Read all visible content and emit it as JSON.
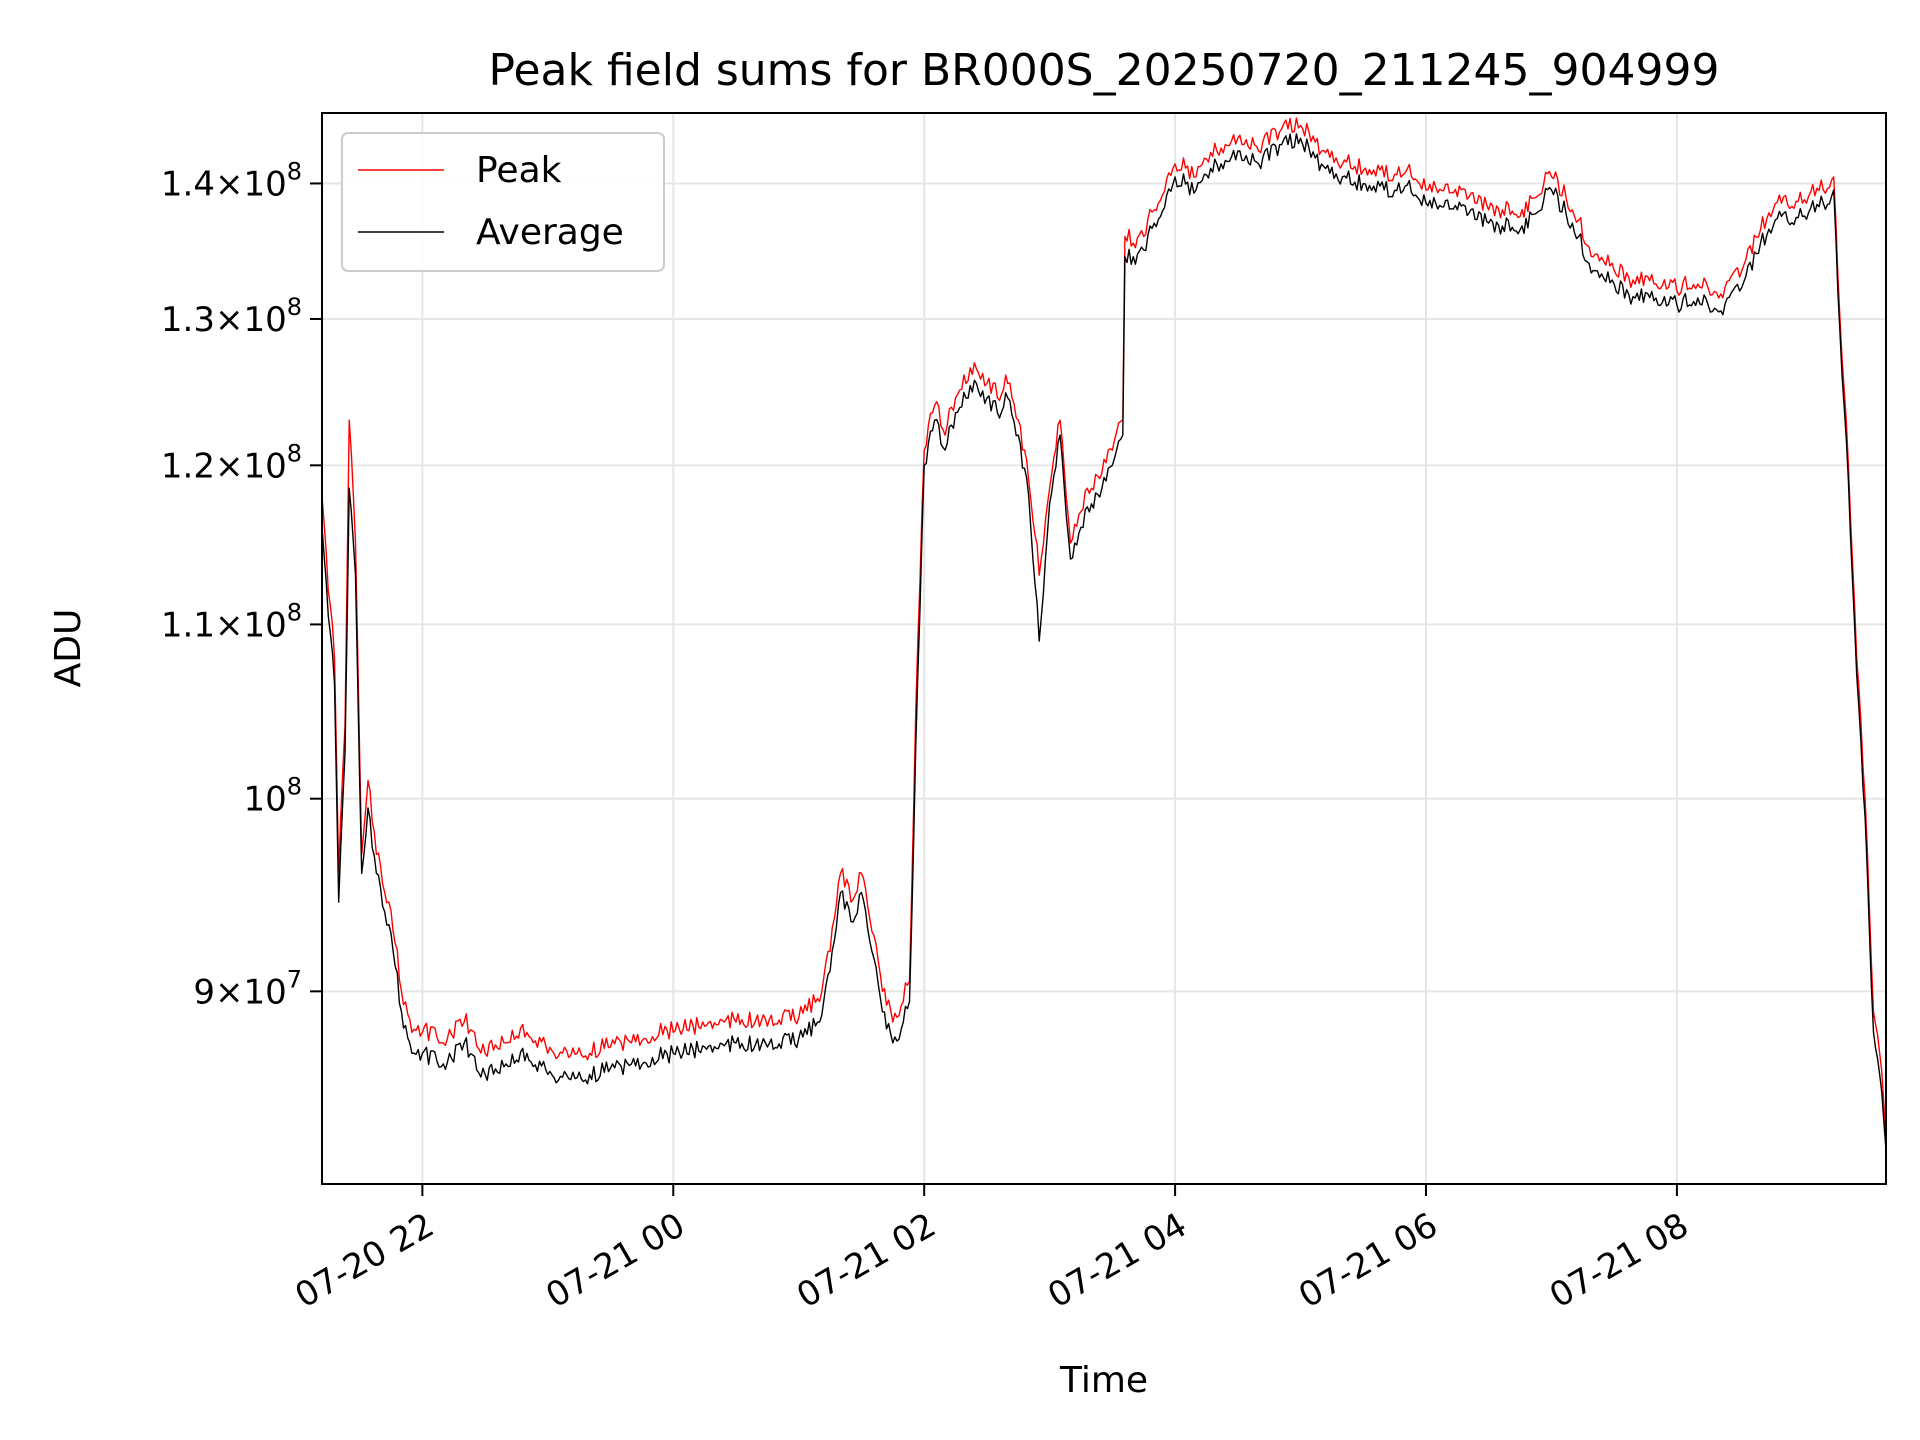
{
  "chart_data": {
    "type": "line",
    "title": "Peak field sums for BR000S_20250720_211245_904999",
    "xlabel": "Time",
    "ylabel": "ADU",
    "y_scale": "log",
    "ylim": [
      81000000,
      145500000
    ],
    "xlim": [
      "2025-07-20 21:12",
      "2025-07-21 09:40"
    ],
    "grid": true,
    "legend_position": "top-left",
    "x_ticks": [
      {
        "value": "2025-07-20 22:00",
        "label": "07-20 22"
      },
      {
        "value": "2025-07-21 00:00",
        "label": "07-21 00"
      },
      {
        "value": "2025-07-21 02:00",
        "label": "07-21 02"
      },
      {
        "value": "2025-07-21 04:00",
        "label": "07-21 04"
      },
      {
        "value": "2025-07-21 06:00",
        "label": "07-21 06"
      },
      {
        "value": "2025-07-21 08:00",
        "label": "07-21 08"
      }
    ],
    "y_ticks": [
      {
        "value": 90000000,
        "mantissa": "9",
        "exponent": "7"
      },
      {
        "value": 100000000,
        "mantissa": "",
        "exponent": "8"
      },
      {
        "value": 110000000,
        "mantissa": "1.1",
        "exponent": "8"
      },
      {
        "value": 120000000,
        "mantissa": "1.2",
        "exponent": "8"
      },
      {
        "value": 130000000,
        "mantissa": "1.3",
        "exponent": "8"
      },
      {
        "value": 140000000,
        "mantissa": "1.4",
        "exponent": "8"
      }
    ],
    "series": [
      {
        "name": "Peak",
        "color": "#ff0000",
        "points": [
          [
            "2025-07-20 21:12",
            118000000
          ],
          [
            "2025-07-20 21:15",
            112000000
          ],
          [
            "2025-07-20 21:18",
            108000000
          ],
          [
            "2025-07-20 21:20",
            96000000
          ],
          [
            "2025-07-20 21:23",
            104000000
          ],
          [
            "2025-07-20 21:25",
            123000000
          ],
          [
            "2025-07-20 21:28",
            115000000
          ],
          [
            "2025-07-20 21:31",
            97000000
          ],
          [
            "2025-07-20 21:34",
            101000000
          ],
          [
            "2025-07-20 21:38",
            97000000
          ],
          [
            "2025-07-20 21:42",
            95000000
          ],
          [
            "2025-07-20 21:46",
            93000000
          ],
          [
            "2025-07-20 21:50",
            90000000
          ],
          [
            "2025-07-20 21:55",
            88000000
          ],
          [
            "2025-07-20 22:00",
            88000000
          ],
          [
            "2025-07-20 22:10",
            87500000
          ],
          [
            "2025-07-20 22:20",
            88500000
          ],
          [
            "2025-07-20 22:30",
            87000000
          ],
          [
            "2025-07-20 22:40",
            87500000
          ],
          [
            "2025-07-20 22:50",
            88000000
          ],
          [
            "2025-07-20 23:00",
            87000000
          ],
          [
            "2025-07-20 23:10",
            86800000
          ],
          [
            "2025-07-20 23:20",
            87000000
          ],
          [
            "2025-07-20 23:30",
            87300000
          ],
          [
            "2025-07-20 23:40",
            87500000
          ],
          [
            "2025-07-20 23:50",
            87800000
          ],
          [
            "2025-07-21 00:00",
            88000000
          ],
          [
            "2025-07-21 00:15",
            88300000
          ],
          [
            "2025-07-21 00:30",
            88500000
          ],
          [
            "2025-07-21 00:45",
            88300000
          ],
          [
            "2025-07-21 01:00",
            88700000
          ],
          [
            "2025-07-21 01:10",
            89500000
          ],
          [
            "2025-07-21 01:15",
            92000000
          ],
          [
            "2025-07-21 01:20",
            96000000
          ],
          [
            "2025-07-21 01:25",
            94500000
          ],
          [
            "2025-07-21 01:30",
            96000000
          ],
          [
            "2025-07-21 01:35",
            93000000
          ],
          [
            "2025-07-21 01:40",
            90000000
          ],
          [
            "2025-07-21 01:45",
            88500000
          ],
          [
            "2025-07-21 01:50",
            89500000
          ],
          [
            "2025-07-21 01:53",
            90500000
          ],
          [
            "2025-07-21 01:56",
            105000000
          ],
          [
            "2025-07-21 02:00",
            121000000
          ],
          [
            "2025-07-21 02:05",
            124000000
          ],
          [
            "2025-07-21 02:10",
            122000000
          ],
          [
            "2025-07-21 02:15",
            124500000
          ],
          [
            "2025-07-21 02:20",
            125500000
          ],
          [
            "2025-07-21 02:25",
            126500000
          ],
          [
            "2025-07-21 02:30",
            125500000
          ],
          [
            "2025-07-21 02:35",
            124500000
          ],
          [
            "2025-07-21 02:40",
            125500000
          ],
          [
            "2025-07-21 02:45",
            123000000
          ],
          [
            "2025-07-21 02:50",
            119000000
          ],
          [
            "2025-07-21 02:55",
            113000000
          ],
          [
            "2025-07-21 03:00",
            118500000
          ],
          [
            "2025-07-21 03:05",
            123000000
          ],
          [
            "2025-07-21 03:10",
            115000000
          ],
          [
            "2025-07-21 03:15",
            117000000
          ],
          [
            "2025-07-21 03:20",
            118500000
          ],
          [
            "2025-07-21 03:25",
            119500000
          ],
          [
            "2025-07-21 03:30",
            121000000
          ],
          [
            "2025-07-21 03:35",
            123000000
          ],
          [
            "2025-07-21 03:36",
            136000000
          ],
          [
            "2025-07-21 03:40",
            135500000
          ],
          [
            "2025-07-21 03:45",
            136000000
          ],
          [
            "2025-07-21 03:50",
            138000000
          ],
          [
            "2025-07-21 04:00",
            141500000
          ],
          [
            "2025-07-21 04:10",
            140500000
          ],
          [
            "2025-07-21 04:20",
            142500000
          ],
          [
            "2025-07-21 04:30",
            143500000
          ],
          [
            "2025-07-21 04:40",
            142500000
          ],
          [
            "2025-07-21 04:50",
            144000000
          ],
          [
            "2025-07-21 05:00",
            144500000
          ],
          [
            "2025-07-21 05:10",
            142500000
          ],
          [
            "2025-07-21 05:20",
            141500000
          ],
          [
            "2025-07-21 05:30",
            141000000
          ],
          [
            "2025-07-21 05:40",
            140500000
          ],
          [
            "2025-07-21 05:50",
            140800000
          ],
          [
            "2025-07-21 06:00",
            139500000
          ],
          [
            "2025-07-21 06:15",
            139000000
          ],
          [
            "2025-07-21 06:30",
            138000000
          ],
          [
            "2025-07-21 06:45",
            137500000
          ],
          [
            "2025-07-21 07:00",
            140500000
          ],
          [
            "2025-07-21 07:10",
            138000000
          ],
          [
            "2025-07-21 07:20",
            134500000
          ],
          [
            "2025-07-21 07:30",
            133500000
          ],
          [
            "2025-07-21 07:40",
            132500000
          ],
          [
            "2025-07-21 07:50",
            132500000
          ],
          [
            "2025-07-21 08:00",
            132000000
          ],
          [
            "2025-07-21 08:10",
            132500000
          ],
          [
            "2025-07-21 08:20",
            131500000
          ],
          [
            "2025-07-21 08:30",
            133000000
          ],
          [
            "2025-07-21 08:40",
            136500000
          ],
          [
            "2025-07-21 08:50",
            138500000
          ],
          [
            "2025-07-21 09:00",
            138500000
          ],
          [
            "2025-07-21 09:10",
            139500000
          ],
          [
            "2025-07-21 09:15",
            140500000
          ],
          [
            "2025-07-21 09:18",
            130000000
          ],
          [
            "2025-07-21 09:22",
            120000000
          ],
          [
            "2025-07-21 09:26",
            108000000
          ],
          [
            "2025-07-21 09:30",
            100000000
          ],
          [
            "2025-07-21 09:34",
            89000000
          ],
          [
            "2025-07-21 09:37",
            87000000
          ],
          [
            "2025-07-21 09:40",
            83000000
          ]
        ]
      },
      {
        "name": "Average",
        "color": "#000000",
        "points": [
          [
            "2025-07-20 21:12",
            116000000
          ],
          [
            "2025-07-20 21:15",
            110500000
          ],
          [
            "2025-07-20 21:18",
            106500000
          ],
          [
            "2025-07-20 21:20",
            94500000
          ],
          [
            "2025-07-20 21:23",
            102500000
          ],
          [
            "2025-07-20 21:25",
            118500000
          ],
          [
            "2025-07-20 21:28",
            113000000
          ],
          [
            "2025-07-20 21:31",
            96000000
          ],
          [
            "2025-07-20 21:34",
            99500000
          ],
          [
            "2025-07-20 21:38",
            96000000
          ],
          [
            "2025-07-20 21:42",
            94000000
          ],
          [
            "2025-07-20 21:46",
            92000000
          ],
          [
            "2025-07-20 21:50",
            89000000
          ],
          [
            "2025-07-20 21:55",
            87000000
          ],
          [
            "2025-07-20 22:00",
            87000000
          ],
          [
            "2025-07-20 22:10",
            86500000
          ],
          [
            "2025-07-20 22:20",
            87500000
          ],
          [
            "2025-07-20 22:30",
            86000000
          ],
          [
            "2025-07-20 22:40",
            86500000
          ],
          [
            "2025-07-20 22:50",
            87000000
          ],
          [
            "2025-07-20 23:00",
            86000000
          ],
          [
            "2025-07-20 23:10",
            85800000
          ],
          [
            "2025-07-20 23:20",
            86000000
          ],
          [
            "2025-07-20 23:30",
            86300000
          ],
          [
            "2025-07-20 23:40",
            86500000
          ],
          [
            "2025-07-20 23:50",
            86800000
          ],
          [
            "2025-07-21 00:00",
            87000000
          ],
          [
            "2025-07-21 00:15",
            87300000
          ],
          [
            "2025-07-21 00:30",
            87500000
          ],
          [
            "2025-07-21 00:45",
            87300000
          ],
          [
            "2025-07-21 01:00",
            87700000
          ],
          [
            "2025-07-21 01:10",
            88500000
          ],
          [
            "2025-07-21 01:15",
            91000000
          ],
          [
            "2025-07-21 01:20",
            95000000
          ],
          [
            "2025-07-21 01:25",
            93500000
          ],
          [
            "2025-07-21 01:30",
            95000000
          ],
          [
            "2025-07-21 01:35",
            92000000
          ],
          [
            "2025-07-21 01:40",
            89000000
          ],
          [
            "2025-07-21 01:45",
            87500000
          ],
          [
            "2025-07-21 01:50",
            88500000
          ],
          [
            "2025-07-21 01:53",
            89500000
          ],
          [
            "2025-07-21 01:56",
            103000000
          ],
          [
            "2025-07-21 02:00",
            120000000
          ],
          [
            "2025-07-21 02:05",
            123000000
          ],
          [
            "2025-07-21 02:10",
            121000000
          ],
          [
            "2025-07-21 02:15",
            123500000
          ],
          [
            "2025-07-21 02:20",
            124500000
          ],
          [
            "2025-07-21 02:25",
            125500000
          ],
          [
            "2025-07-21 02:30",
            124500000
          ],
          [
            "2025-07-21 02:35",
            123500000
          ],
          [
            "2025-07-21 02:40",
            124500000
          ],
          [
            "2025-07-21 02:45",
            122000000
          ],
          [
            "2025-07-21 02:50",
            118000000
          ],
          [
            "2025-07-21 02:55",
            109000000
          ],
          [
            "2025-07-21 03:00",
            117500000
          ],
          [
            "2025-07-21 03:05",
            122000000
          ],
          [
            "2025-07-21 03:10",
            114000000
          ],
          [
            "2025-07-21 03:15",
            116000000
          ],
          [
            "2025-07-21 03:20",
            117500000
          ],
          [
            "2025-07-21 03:25",
            118500000
          ],
          [
            "2025-07-21 03:30",
            120000000
          ],
          [
            "2025-07-21 03:35",
            122000000
          ],
          [
            "2025-07-21 03:36",
            134500000
          ],
          [
            "2025-07-21 03:40",
            134500000
          ],
          [
            "2025-07-21 03:45",
            135000000
          ],
          [
            "2025-07-21 03:50",
            137000000
          ],
          [
            "2025-07-21 04:00",
            140500000
          ],
          [
            "2025-07-21 04:10",
            139500000
          ],
          [
            "2025-07-21 04:20",
            141500000
          ],
          [
            "2025-07-21 04:30",
            142500000
          ],
          [
            "2025-07-21 04:40",
            141500000
          ],
          [
            "2025-07-21 04:50",
            143000000
          ],
          [
            "2025-07-21 05:00",
            143500000
          ],
          [
            "2025-07-21 05:10",
            141500000
          ],
          [
            "2025-07-21 05:20",
            140500000
          ],
          [
            "2025-07-21 05:30",
            140000000
          ],
          [
            "2025-07-21 05:40",
            139500000
          ],
          [
            "2025-07-21 05:50",
            139800000
          ],
          [
            "2025-07-21 06:00",
            138500000
          ],
          [
            "2025-07-21 06:15",
            138000000
          ],
          [
            "2025-07-21 06:30",
            137000000
          ],
          [
            "2025-07-21 06:45",
            136500000
          ],
          [
            "2025-07-21 07:00",
            139500000
          ],
          [
            "2025-07-21 07:10",
            137000000
          ],
          [
            "2025-07-21 07:20",
            133500000
          ],
          [
            "2025-07-21 07:30",
            132500000
          ],
          [
            "2025-07-21 07:40",
            131500000
          ],
          [
            "2025-07-21 07:50",
            131500000
          ],
          [
            "2025-07-21 08:00",
            131000000
          ],
          [
            "2025-07-21 08:10",
            131500000
          ],
          [
            "2025-07-21 08:20",
            130500000
          ],
          [
            "2025-07-21 08:30",
            132000000
          ],
          [
            "2025-07-21 08:40",
            135500000
          ],
          [
            "2025-07-21 08:50",
            137500000
          ],
          [
            "2025-07-21 09:00",
            137500000
          ],
          [
            "2025-07-21 09:10",
            138500000
          ],
          [
            "2025-07-21 09:15",
            139500000
          ],
          [
            "2025-07-21 09:18",
            129000000
          ],
          [
            "2025-07-21 09:22",
            119000000
          ],
          [
            "2025-07-21 09:26",
            107000000
          ],
          [
            "2025-07-21 09:30",
            99000000
          ],
          [
            "2025-07-21 09:34",
            88000000
          ],
          [
            "2025-07-21 09:37",
            86000000
          ],
          [
            "2025-07-21 09:40",
            82500000
          ]
        ]
      }
    ]
  }
}
